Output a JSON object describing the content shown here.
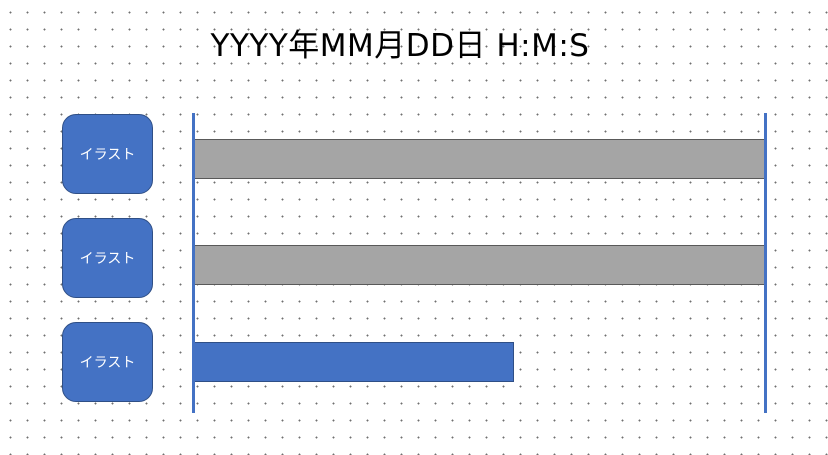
{
  "title": "YYYY年MM月DD日 H:M:S",
  "rows": [
    {
      "label": "イラスト",
      "progress": 1.0,
      "color": "#a5a5a5"
    },
    {
      "label": "イラスト",
      "progress": 1.0,
      "color": "#a5a5a5"
    },
    {
      "label": "イラスト",
      "progress": 0.56,
      "color": "#4472c4"
    }
  ],
  "colors": {
    "accent": "#4472c4",
    "complete": "#a5a5a5"
  }
}
